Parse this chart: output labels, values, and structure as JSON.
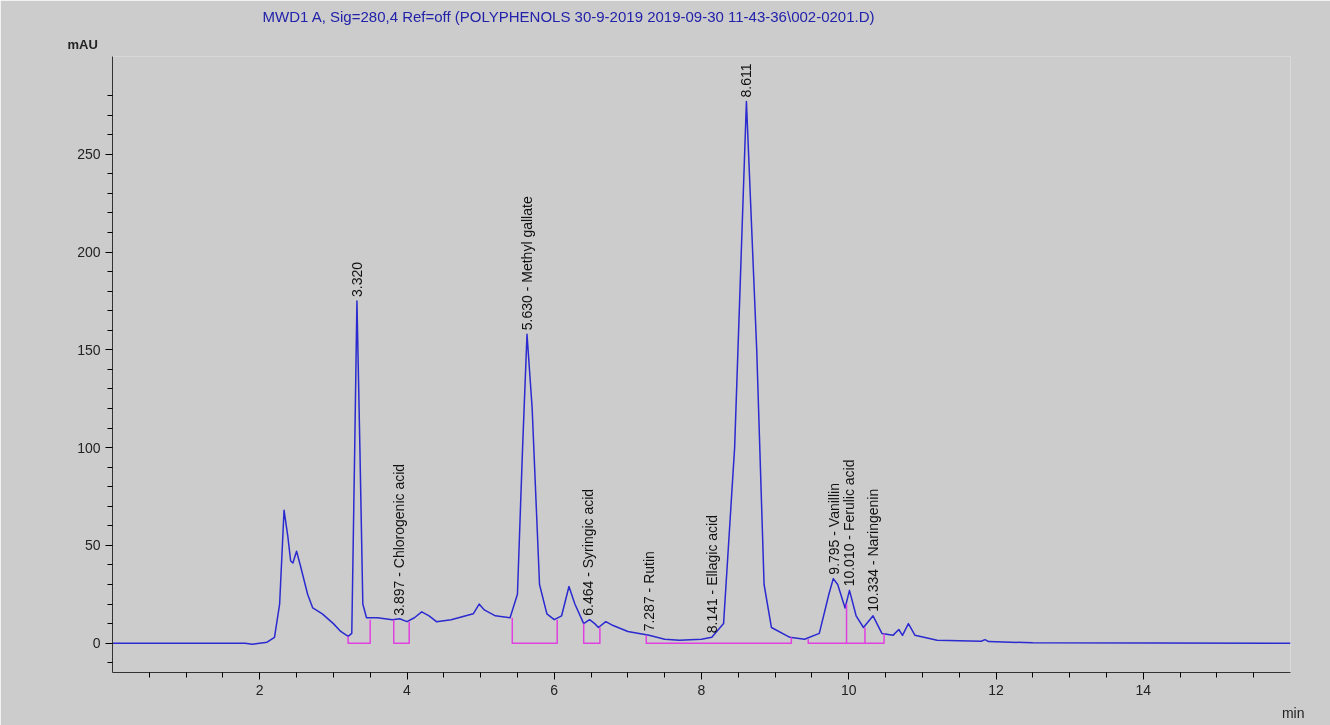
{
  "chart_data": {
    "type": "line",
    "title": "MWD1 A, Sig=280,4 Ref=off (POLYPHENOLS  30-9-2019 2019-09-30 11-43-36\\002-0201.D)",
    "xlabel": "min",
    "ylabel": "mAU",
    "xlim": [
      0,
      16
    ],
    "ylim": [
      -15,
      300
    ],
    "xticks": [
      {
        "value": 0.5,
        "label": null
      },
      {
        "value": 1,
        "label": null
      },
      {
        "value": 1.5,
        "label": null
      },
      2,
      {
        "value": 2.5,
        "label": null
      },
      {
        "value": 3,
        "label": null
      },
      {
        "value": 3.5,
        "label": null
      },
      4,
      {
        "value": 4.5,
        "label": null
      },
      {
        "value": 5,
        "label": null
      },
      {
        "value": 5.5,
        "label": null
      },
      6,
      {
        "value": 6.5,
        "label": null
      },
      {
        "value": 7,
        "label": null
      },
      {
        "value": 7.5,
        "label": null
      },
      8,
      {
        "value": 8.5,
        "label": null
      },
      {
        "value": 9,
        "label": null
      },
      {
        "value": 9.5,
        "label": null
      },
      10,
      {
        "value": 10.5,
        "label": null
      },
      {
        "value": 11,
        "label": null
      },
      {
        "value": 11.5,
        "label": null
      },
      12,
      {
        "value": 12.5,
        "label": null
      },
      {
        "value": 13,
        "label": null
      },
      {
        "value": 13.5,
        "label": null
      },
      14,
      {
        "value": 14.5,
        "label": null
      },
      {
        "value": 15,
        "label": null
      },
      {
        "value": 15.5,
        "label": null
      }
    ],
    "yticks": [
      {
        "value": -10,
        "label": null
      },
      0,
      {
        "value": 10,
        "label": null
      },
      {
        "value": 20,
        "label": null
      },
      {
        "value": 30,
        "label": null
      },
      {
        "value": 40,
        "label": null
      },
      50,
      {
        "value": 60,
        "label": null
      },
      {
        "value": 70,
        "label": null
      },
      {
        "value": 80,
        "label": null
      },
      {
        "value": 90,
        "label": null
      },
      100,
      {
        "value": 110,
        "label": null
      },
      {
        "value": 120,
        "label": null
      },
      {
        "value": 130,
        "label": null
      },
      {
        "value": 140,
        "label": null
      },
      150,
      {
        "value": 160,
        "label": null
      },
      {
        "value": 170,
        "label": null
      },
      {
        "value": 180,
        "label": null
      },
      {
        "value": 190,
        "label": null
      },
      200,
      {
        "value": 210,
        "label": null
      },
      {
        "value": 220,
        "label": null
      },
      {
        "value": 230,
        "label": null
      },
      {
        "value": 240,
        "label": null
      },
      250,
      {
        "value": 260,
        "label": null
      },
      {
        "value": 270,
        "label": null
      },
      {
        "value": 280,
        "label": null
      }
    ],
    "grid": false,
    "marker": "none",
    "line_style": "solid",
    "series": [
      {
        "color": "#2a2ad0",
        "x": [
          0,
          1.8,
          1.9,
          2.1,
          2.2,
          2.27,
          2.33,
          2.38,
          2.42,
          2.45,
          2.5,
          2.55,
          2.65,
          2.72,
          2.85,
          3.0,
          3.1,
          3.2,
          3.25,
          3.29,
          3.32,
          3.36,
          3.4,
          3.45,
          3.6,
          3.8,
          3.9,
          4.0,
          4.1,
          4.2,
          4.3,
          4.4,
          4.6,
          4.9,
          4.98,
          5.05,
          5.2,
          5.4,
          5.5,
          5.57,
          5.63,
          5.7,
          5.8,
          5.9,
          6.0,
          6.1,
          6.2,
          6.28,
          6.4,
          6.48,
          6.55,
          6.6,
          6.7,
          6.8,
          7.0,
          7.287,
          7.5,
          7.7,
          8.0,
          8.14,
          8.3,
          8.45,
          8.61,
          8.75,
          8.85,
          8.95,
          9.2,
          9.4,
          9.6,
          9.73,
          9.79,
          9.85,
          9.95,
          10.01,
          10.1,
          10.2,
          10.33,
          10.45,
          10.6,
          10.68,
          10.73,
          10.81,
          10.9,
          11.2,
          11.8,
          11.85,
          11.9,
          12.5,
          16
        ],
        "values": [
          0,
          0,
          -0.5,
          0.5,
          3,
          20,
          68,
          55,
          42,
          41,
          47,
          40,
          25,
          18,
          15,
          10,
          6,
          3.5,
          5,
          100,
          175,
          100,
          20,
          13,
          13,
          12,
          12.5,
          11,
          13,
          16,
          14,
          11,
          12,
          15,
          20,
          17,
          14,
          13,
          25,
          100,
          158,
          120,
          30,
          15,
          12,
          14,
          29,
          20,
          10,
          12,
          10,
          8,
          11,
          9,
          6,
          4,
          2,
          1.5,
          2,
          3,
          10,
          100,
          277,
          150,
          30,
          8,
          3,
          2,
          5,
          25,
          33,
          30,
          18,
          27,
          14,
          8,
          14,
          5,
          4,
          7,
          4,
          10,
          4,
          1.5,
          1,
          1.8,
          0.8,
          0.2,
          0
        ]
      },
      {
        "color": "#e040e0",
        "x": [
          3.2,
          3.2,
          3.5,
          3.5,
          null,
          3.82,
          3.82,
          4.03,
          4.03,
          null,
          5.43,
          5.43,
          6.04,
          6.04,
          null,
          6.4,
          6.4,
          6.62,
          6.62,
          null,
          7.25,
          7.25,
          9.22,
          9.22,
          null,
          9.45,
          9.45,
          10.48,
          10.48,
          null,
          9.97,
          9.97,
          null,
          10.22,
          10.22
        ],
        "values": [
          3.5,
          0,
          0,
          12,
          null,
          12,
          0,
          0,
          11,
          null,
          13,
          0,
          0,
          12,
          null,
          10,
          0,
          0,
          8,
          null,
          4,
          0,
          0,
          3,
          null,
          2,
          0,
          0,
          5,
          null,
          0,
          20,
          null,
          0,
          8
        ]
      }
    ],
    "annotations": [
      {
        "text": "3.320",
        "x": 3.32,
        "y": 175
      },
      {
        "text": "3.897 -  Chlorogenic acid",
        "x": 3.897,
        "y": 12
      },
      {
        "text": "5.630 -  Methyl gallate",
        "x": 5.63,
        "y": 158
      },
      {
        "text": "6.464 -  Syringic acid",
        "x": 6.464,
        "y": 12
      },
      {
        "text": "7.287 -  Rutin",
        "x": 7.287,
        "y": 4
      },
      {
        "text": "8.141 -  Ellagic acid",
        "x": 8.141,
        "y": 3
      },
      {
        "text": "8.611",
        "x": 8.611,
        "y": 277
      },
      {
        "text": "9.795 -  Vanillin",
        "x": 9.795,
        "y": 33
      },
      {
        "text": "10.010 -  Ferulic acid",
        "x": 10.01,
        "y": 27
      },
      {
        "text": "10.334 -  Naringenin",
        "x": 10.334,
        "y": 14
      }
    ]
  }
}
